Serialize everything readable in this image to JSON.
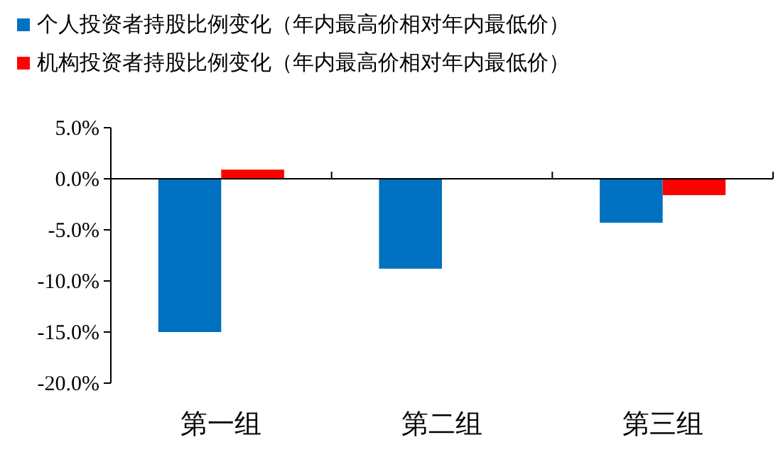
{
  "chart_data": {
    "type": "bar",
    "categories": [
      "第一组",
      "第二组",
      "第三组"
    ],
    "series": [
      {
        "name": "个人投资者持股比例变化（年内最高价相对年内最低价）",
        "color": "#0070c0",
        "values": [
          -15.0,
          -8.8,
          -4.3
        ]
      },
      {
        "name": "机构投资者持股比例变化（年内最高价相对年内最低价）",
        "color": "#ff0000",
        "values": [
          0.9,
          null,
          -1.6
        ]
      }
    ],
    "ylim": [
      -20,
      5
    ],
    "yticks": [
      {
        "value": 5,
        "label": "5.0%"
      },
      {
        "value": 0,
        "label": "0.0%"
      },
      {
        "value": -5,
        "label": "-5.0%"
      },
      {
        "value": -10,
        "label": "-10.0%"
      },
      {
        "value": -15,
        "label": "-15.0%"
      },
      {
        "value": -20,
        "label": "-20.0%"
      }
    ],
    "legend": "top left"
  }
}
